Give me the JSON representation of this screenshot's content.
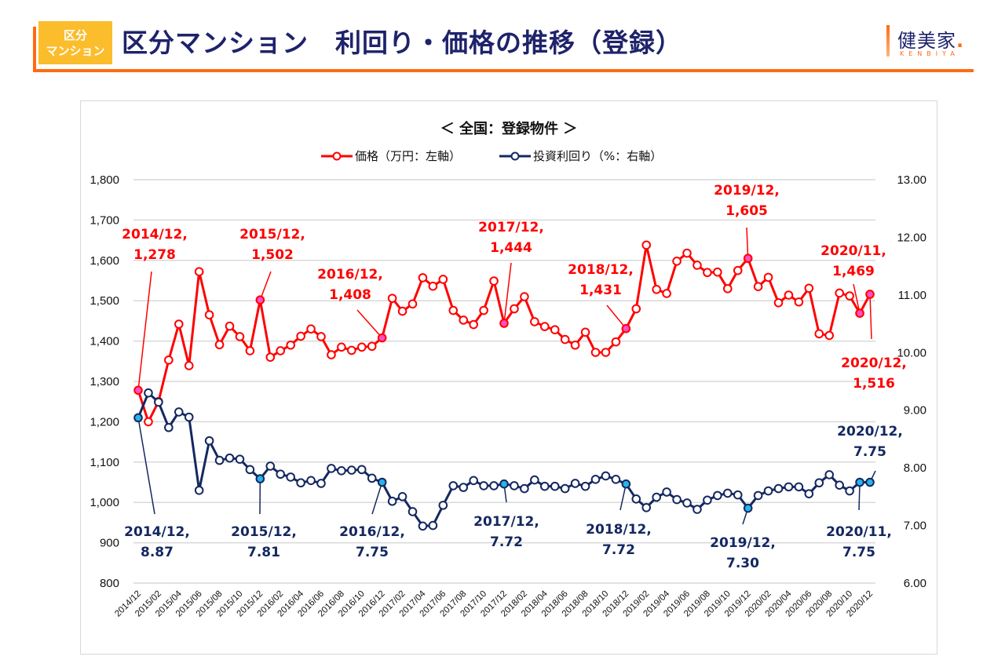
{
  "header": {
    "badge_line1": "区分",
    "badge_line2": "マンション",
    "title": "区分マンション　利回り・価格の推移（登録）",
    "logo_text": "健美家",
    "logo_dot": ".",
    "logo_sub": "KENBIYA"
  },
  "colors": {
    "accent_orange": "#ff6a13",
    "badge_yellow": "#fbbd2c",
    "title_navy": "#1f236b",
    "price_red": "#ff0000",
    "yield_navy": "#142860",
    "price_highlight": "#ff4fc3",
    "yield_highlight": "#27b4ea"
  },
  "chart_data": {
    "type": "line",
    "title": "＜ 全国：登録物件 ＞",
    "legend": [
      "価格（万円：左軸）",
      "投資利回り（%：右軸）"
    ],
    "legend_placement": "top-center",
    "xlabel": "",
    "ylabel_left": "価格（万円）",
    "ylabel_right": "投資利回り（%）",
    "ylim_left": [
      800,
      1800
    ],
    "ylim_right": [
      6,
      13
    ],
    "yticks_left": [
      "800",
      "900",
      "1,000",
      "1,100",
      "1,200",
      "1,300",
      "1,400",
      "1,500",
      "1,600",
      "1,700",
      "1,800"
    ],
    "yticks_right": [
      "6.00",
      "7.00",
      "8.00",
      "9.00",
      "10.00",
      "11.00",
      "12.00",
      "13.00"
    ],
    "grid": true,
    "x_start": "2014/12",
    "x_end": "2020/12",
    "x_tick_labels": [
      "2014/12",
      "2015/02",
      "2015/04",
      "2015/06",
      "2015/08",
      "2015/10",
      "2015/12",
      "2016/02",
      "2016/04",
      "2016/06",
      "2016/08",
      "2016/10",
      "2016/12",
      "2017/02",
      "2017/04",
      "2017/06",
      "2017/08",
      "2017/10",
      "2017/12",
      "2018/02",
      "2018/04",
      "2018/06",
      "2018/08",
      "2018/10",
      "2018/12",
      "2019/02",
      "2019/04",
      "2019/06",
      "2019/08",
      "2019/10",
      "2019/12",
      "2020/02",
      "2020/04",
      "2020/06",
      "2020/08",
      "2020/10",
      "2020/12"
    ],
    "values_note": "Only points listed in each series' 'labels' array carry a printed value in the source chart. All other values are estimated from the pixel position of the marker against the axis scale (about ±5 万円 for price, ±0.05% for yield).",
    "series": [
      {
        "name": "価格（万円：左軸）",
        "axis": "left",
        "estimated": true,
        "values": [
          1278,
          1200,
          1250,
          1353,
          1442,
          1339,
          1572,
          1465,
          1391,
          1437,
          1411,
          1376,
          1502,
          1360,
          1376,
          1390,
          1412,
          1430,
          1411,
          1366,
          1385,
          1377,
          1385,
          1387,
          1408,
          1506,
          1474,
          1492,
          1557,
          1536,
          1553,
          1476,
          1452,
          1441,
          1476,
          1549,
          1444,
          1480,
          1510,
          1448,
          1436,
          1428,
          1404,
          1390,
          1422,
          1372,
          1372,
          1398,
          1431,
          1480,
          1638,
          1528,
          1518,
          1598,
          1618,
          1588,
          1570,
          1571,
          1530,
          1575,
          1605,
          1535,
          1558,
          1495,
          1514,
          1497,
          1531,
          1418,
          1414,
          1519,
          1512,
          1469,
          1516
        ],
        "labels": [
          {
            "index": 0,
            "text1": "2014/12,",
            "text2": "1,278",
            "value": 1278
          },
          {
            "index": 12,
            "text1": "2015/12,",
            "text2": "1,502",
            "value": 1502
          },
          {
            "index": 24,
            "text1": "2016/12,",
            "text2": "1,408",
            "value": 1408
          },
          {
            "index": 36,
            "text1": "2017/12,",
            "text2": "1,444",
            "value": 1444
          },
          {
            "index": 48,
            "text1": "2018/12,",
            "text2": "1,431",
            "value": 1431
          },
          {
            "index": 60,
            "text1": "2019/12,",
            "text2": "1,605",
            "value": 1605
          },
          {
            "index": 71,
            "text1": "2020/11,",
            "text2": "1,469",
            "value": 1469
          },
          {
            "index": 72,
            "text1": "2020/12,",
            "text2": "1,516",
            "value": 1516
          }
        ]
      },
      {
        "name": "投資利回り（%：右軸）",
        "axis": "right",
        "estimated": true,
        "values": [
          8.87,
          9.3,
          9.14,
          8.7,
          8.97,
          8.88,
          7.61,
          8.47,
          8.13,
          8.17,
          8.15,
          7.97,
          7.81,
          8.03,
          7.89,
          7.84,
          7.74,
          7.78,
          7.73,
          7.99,
          7.95,
          7.96,
          7.97,
          7.82,
          7.75,
          7.42,
          7.5,
          7.24,
          6.99,
          7.0,
          7.35,
          7.69,
          7.66,
          7.78,
          7.69,
          7.69,
          7.72,
          7.69,
          7.64,
          7.79,
          7.68,
          7.68,
          7.64,
          7.73,
          7.68,
          7.8,
          7.86,
          7.8,
          7.72,
          7.46,
          7.31,
          7.49,
          7.58,
          7.45,
          7.39,
          7.28,
          7.44,
          7.52,
          7.56,
          7.53,
          7.3,
          7.52,
          7.6,
          7.64,
          7.67,
          7.67,
          7.55,
          7.74,
          7.88,
          7.7,
          7.6,
          7.75,
          7.75
        ],
        "labels": [
          {
            "index": 0,
            "text1": "2014/12,",
            "text2": "8.87",
            "value": 8.87
          },
          {
            "index": 12,
            "text1": "2015/12,",
            "text2": "7.81",
            "value": 7.81
          },
          {
            "index": 24,
            "text1": "2016/12,",
            "text2": "7.75",
            "value": 7.75
          },
          {
            "index": 36,
            "text1": "2017/12,",
            "text2": "7.72",
            "value": 7.72
          },
          {
            "index": 48,
            "text1": "2018/12,",
            "text2": "7.72",
            "value": 7.72
          },
          {
            "index": 60,
            "text1": "2019/12,",
            "text2": "7.30",
            "value": 7.3
          },
          {
            "index": 71,
            "text1": "2020/11,",
            "text2": "7.75",
            "value": 7.75
          },
          {
            "index": 72,
            "text1": "2020/12,",
            "text2": "7.75",
            "value": 7.75
          }
        ]
      }
    ]
  }
}
